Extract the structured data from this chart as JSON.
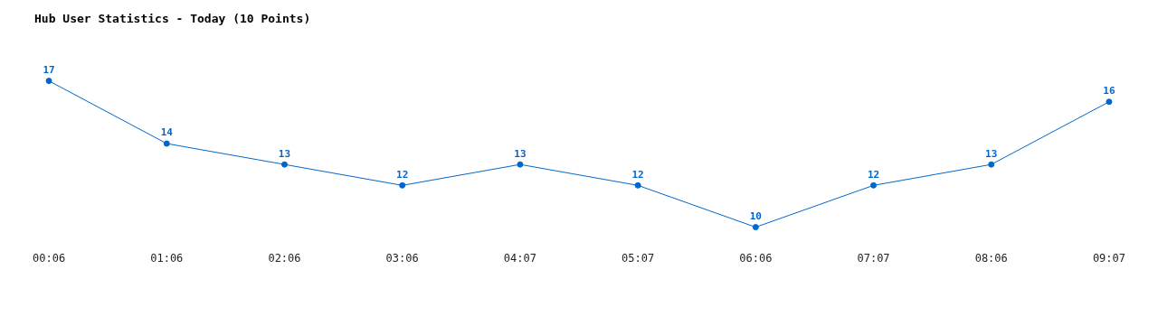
{
  "chart_data": {
    "type": "line",
    "title": "Hub User Statistics - Today (10 Points)",
    "categories": [
      "00:06",
      "01:06",
      "02:06",
      "03:06",
      "04:07",
      "05:07",
      "06:06",
      "07:07",
      "08:06",
      "09:07"
    ],
    "series": [
      {
        "color": "#0066cc",
        "values": [
          17,
          14,
          13,
          12,
          13,
          12,
          10,
          12,
          13,
          16
        ]
      }
    ],
    "data_labels": true,
    "marker": "circle",
    "grid": false,
    "legend": false,
    "tick_labels": "x"
  }
}
